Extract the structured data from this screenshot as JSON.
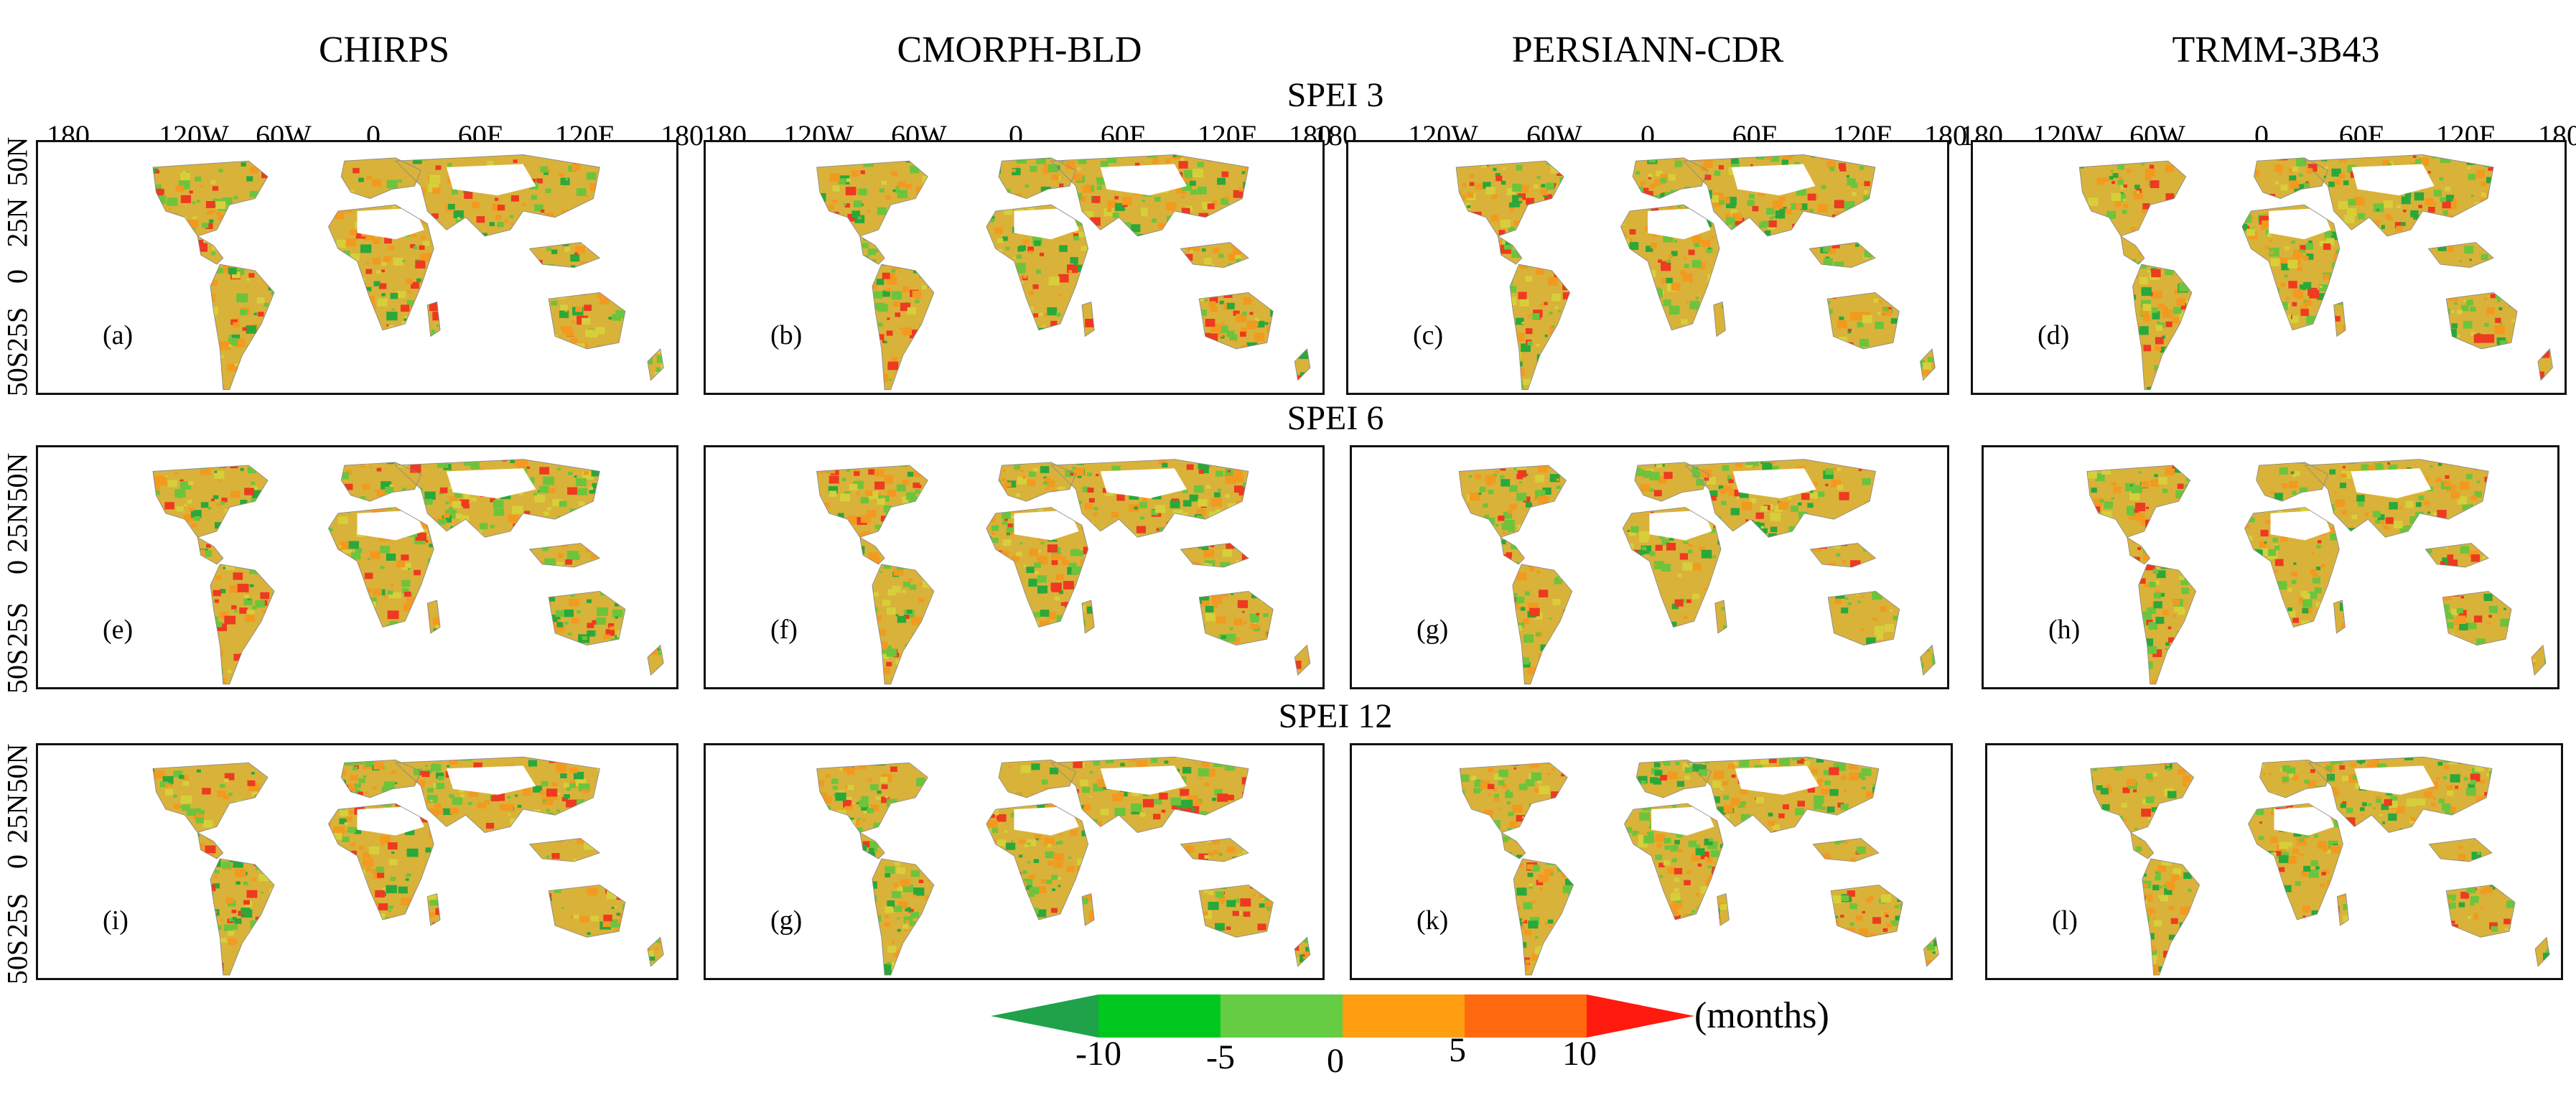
{
  "columns": [
    "CHIRPS",
    "CMORPH-BLD",
    "PERSIANN-CDR",
    "TRMM-3B43"
  ],
  "rows": [
    {
      "title": "SPEI 3",
      "labels": [
        "(a)",
        "(b)",
        "(c)",
        "(d)"
      ]
    },
    {
      "title": "SPEI 6",
      "labels": [
        "(e)",
        "(f)",
        "(g)",
        "(h)"
      ]
    },
    {
      "title": "SPEI 12",
      "labels": [
        "(i)",
        "(g)",
        "(k)",
        "(l)"
      ]
    }
  ],
  "longitude_labels": [
    "180",
    "120W",
    "60W",
    "0",
    "60E",
    "120E",
    "180"
  ],
  "latitude_labels": [
    "50N",
    "25N",
    "0",
    "25S",
    "50S"
  ],
  "latitude_labels_row1": [
    "50N",
    "25N",
    "0",
    "50S25S"
  ],
  "colorbar": {
    "ticks": [
      "-10",
      "-5",
      "0",
      "5",
      "10"
    ],
    "unit": "(months)",
    "colors": [
      "#1fa24a",
      "#00c81e",
      "#66cc44",
      "#ff9e10",
      "#ff6a10",
      "#ff1a10"
    ]
  },
  "map_colors": {
    "land_base": "#d9b23a",
    "green": "#6cc43c",
    "dark_green": "#2aa83a",
    "orange": "#f29a20",
    "red": "#ee3a20",
    "yellow": "#d7cf3a"
  }
}
